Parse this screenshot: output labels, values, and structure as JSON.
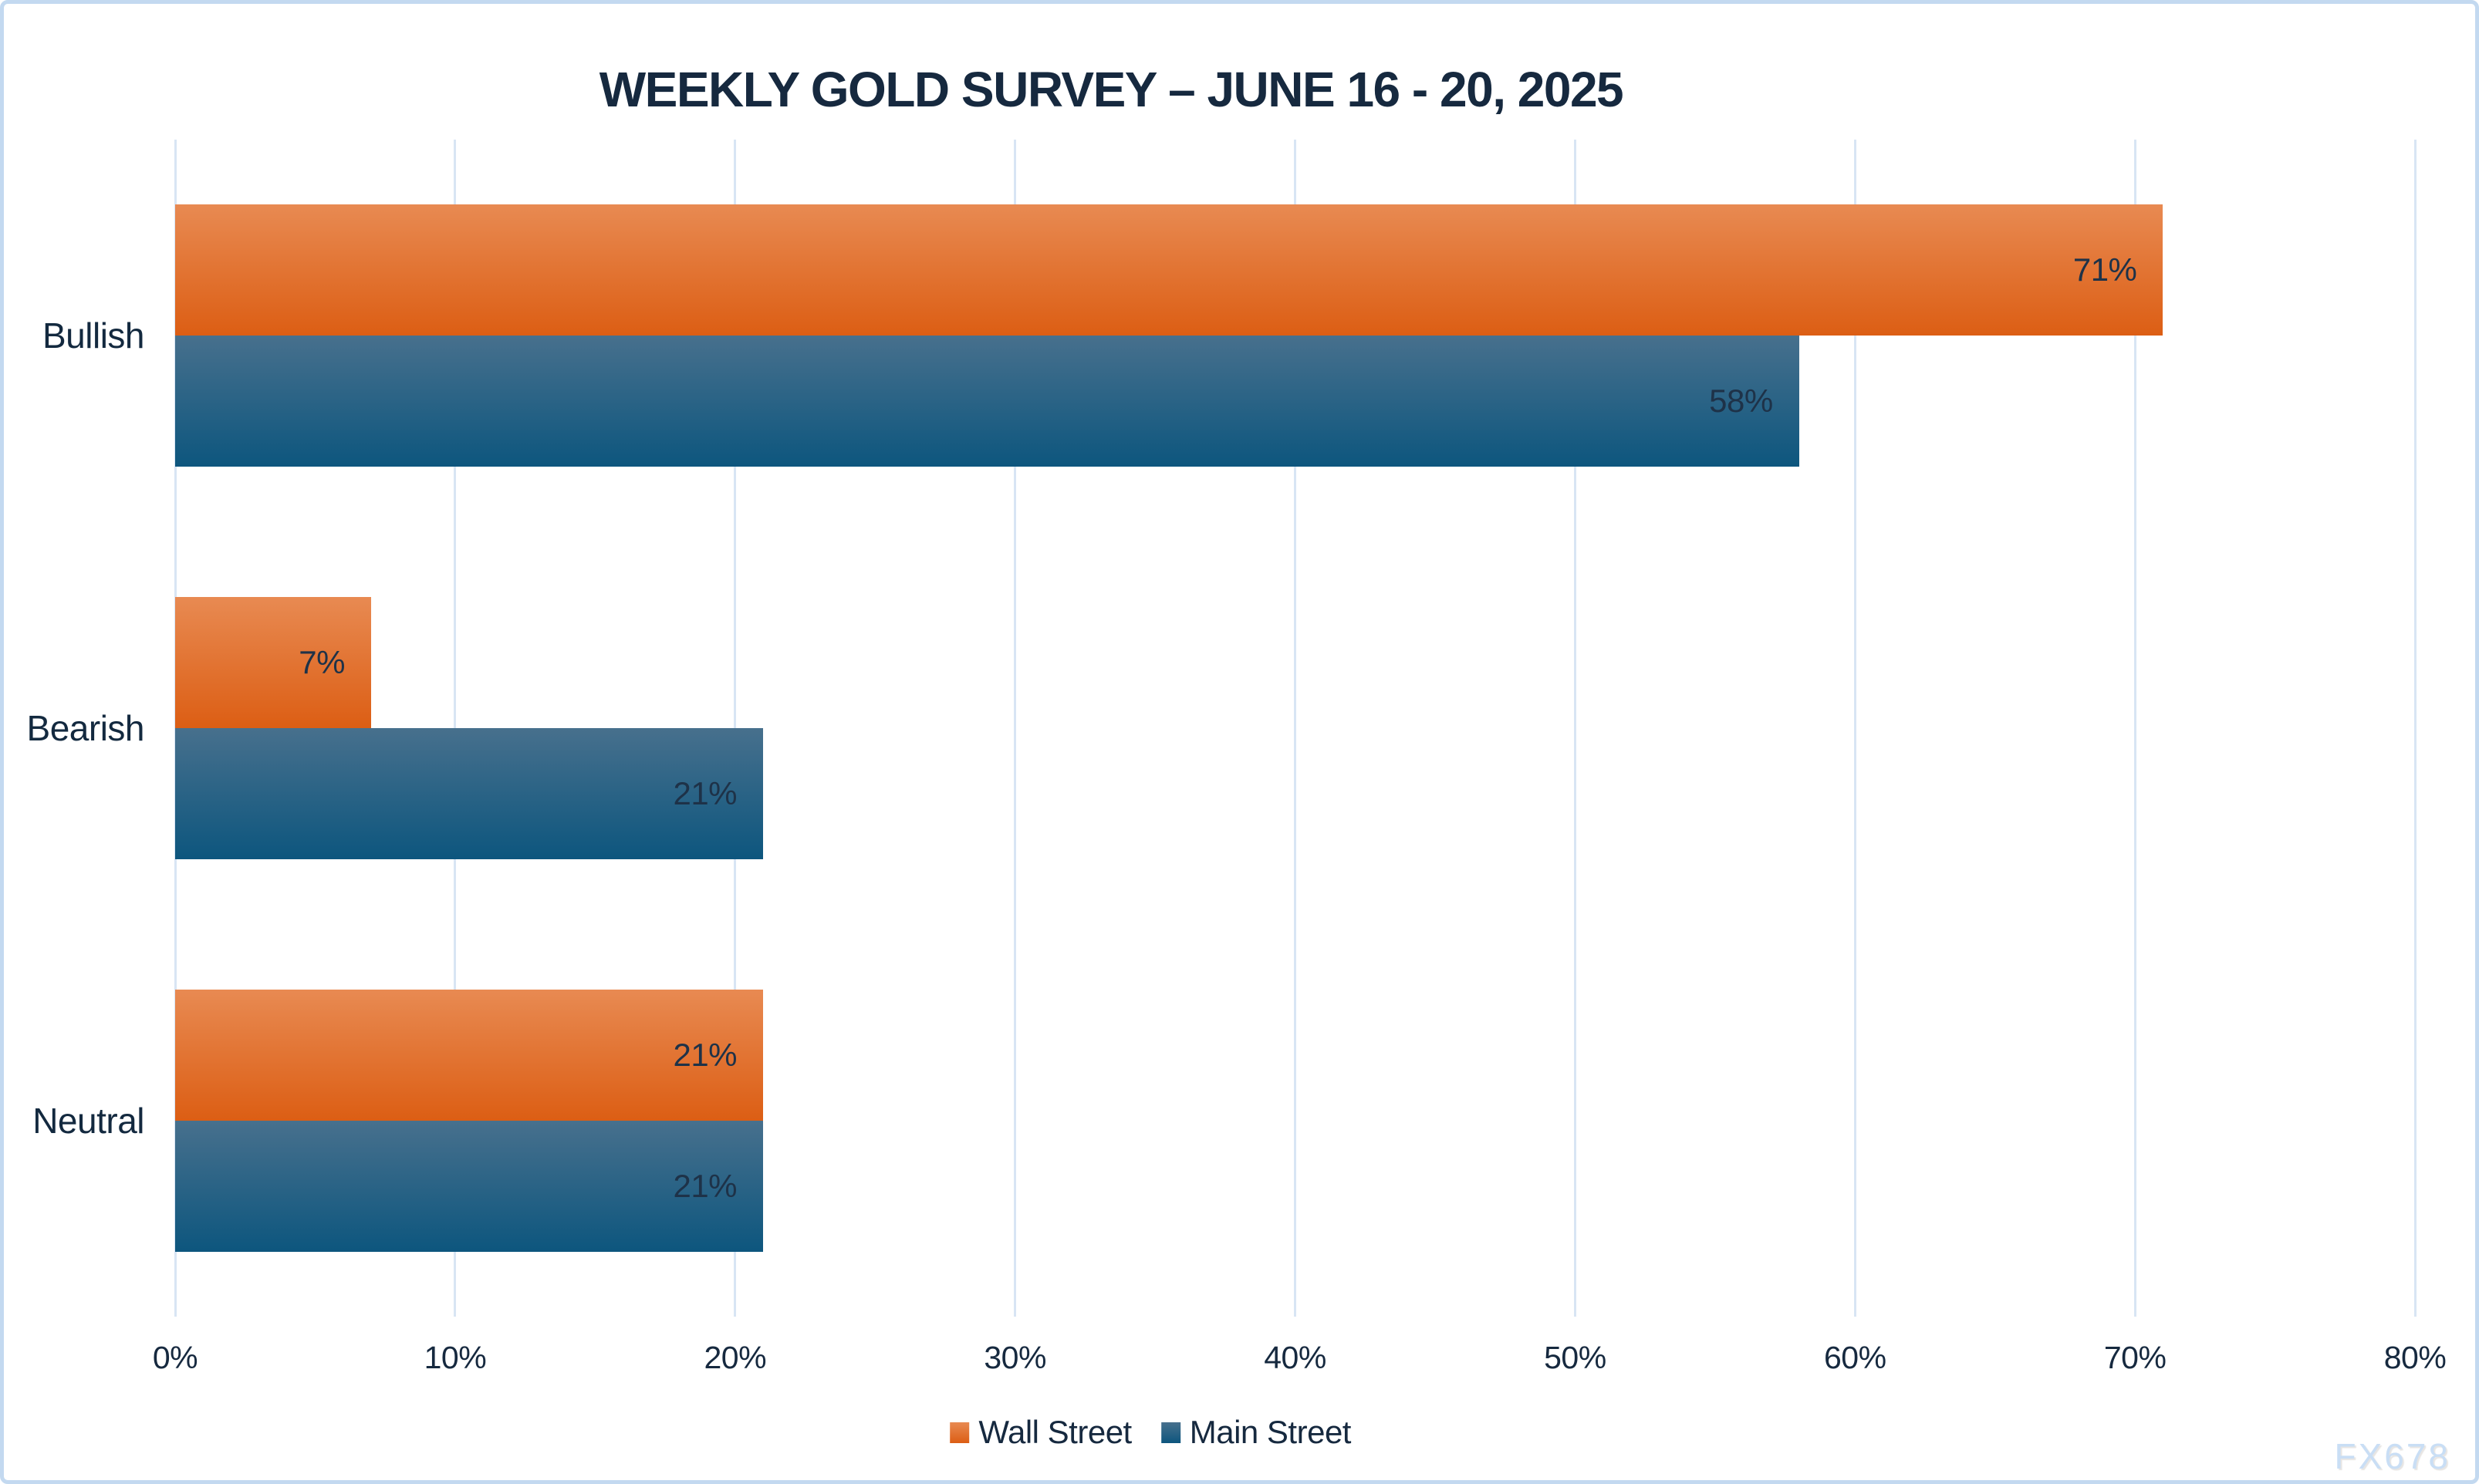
{
  "chart_data": {
    "type": "bar",
    "orientation": "horizontal",
    "title": "WEEKLY GOLD SURVEY – JUNE 16 - 20, 2025",
    "categories": [
      "Bullish",
      "Bearish",
      "Neutral"
    ],
    "series": [
      {
        "name": "Wall Street",
        "values": [
          71,
          7,
          21
        ],
        "color_top": "#e88a52",
        "color_bottom": "#dc5e14"
      },
      {
        "name": "Main Street",
        "values": [
          58,
          21,
          21
        ],
        "color_top": "#47708d",
        "color_bottom": "#0d567e"
      }
    ],
    "value_suffix": "%",
    "xlabel": "",
    "ylabel": "",
    "x_axis": {
      "min": 0,
      "max": 80,
      "tick_step": 10,
      "ticks": [
        "0%",
        "10%",
        "20%",
        "30%",
        "40%",
        "50%",
        "60%",
        "70%",
        "80%"
      ]
    },
    "grid": true,
    "legend_position": "bottom"
  },
  "style": {
    "gridline_color": "#d8e5f4",
    "border_color": "#c3d9f0",
    "text_color": "#16293f",
    "label_color": "#1e3248",
    "watermark_color": "#c9def5"
  },
  "watermark": "FX678"
}
